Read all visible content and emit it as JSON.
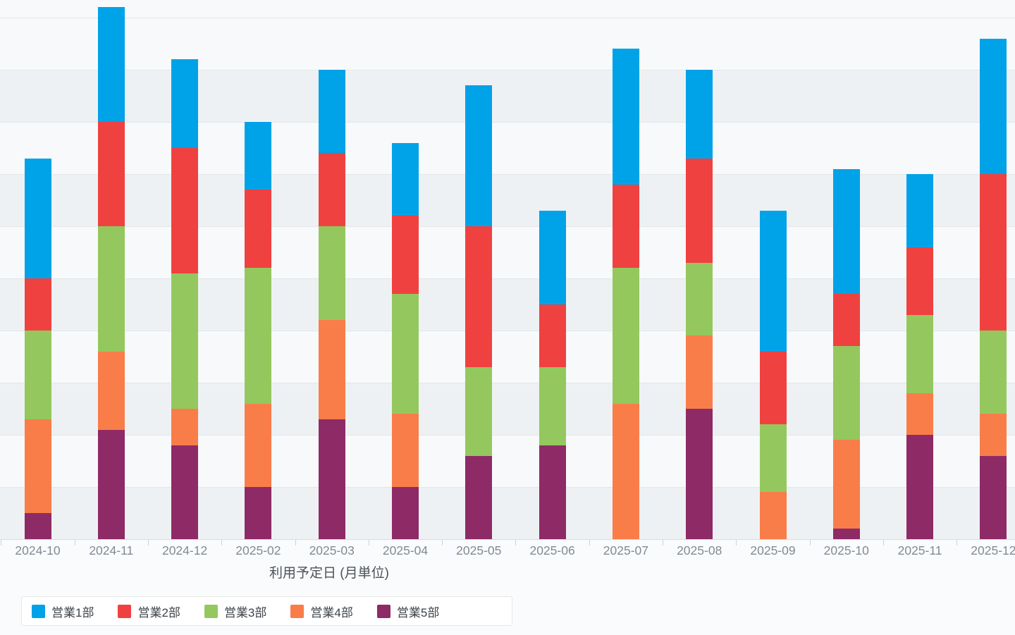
{
  "chart_data": {
    "type": "bar",
    "stacked": true,
    "title": "",
    "xlabel": "利用予定日 (月単位)",
    "ylabel": "",
    "categories": [
      "2024-10",
      "2024-11",
      "2024-12",
      "2025-02",
      "2025-03",
      "2025-04",
      "2025-05",
      "2025-06",
      "2025-07",
      "2025-08",
      "2025-09",
      "2025-10",
      "2025-11",
      "2025-12"
    ],
    "series": [
      {
        "name": "営業1部",
        "color": "#00a2e8",
        "values": [
          23,
          22,
          17,
          13,
          16,
          14,
          27,
          18,
          26,
          17,
          27,
          24,
          14,
          26
        ]
      },
      {
        "name": "営業2部",
        "color": "#f04141",
        "values": [
          10,
          20,
          24,
          15,
          14,
          15,
          27,
          12,
          16,
          20,
          14,
          10,
          13,
          30
        ]
      },
      {
        "name": "営業3部",
        "color": "#94c85e",
        "values": [
          17,
          24,
          26,
          26,
          18,
          23,
          17,
          15,
          26,
          14,
          13,
          18,
          15,
          16
        ]
      },
      {
        "name": "営業4部",
        "color": "#f97d49",
        "values": [
          18,
          15,
          7,
          16,
          19,
          14,
          0,
          0,
          26,
          14,
          9,
          17,
          8,
          8
        ]
      },
      {
        "name": "営業5部",
        "color": "#8e2a66",
        "values": [
          5,
          21,
          18,
          10,
          23,
          10,
          16,
          18,
          0,
          25,
          0,
          2,
          20,
          16
        ]
      }
    ],
    "y_axis": {
      "labels_visible": false,
      "gridline_step": 10,
      "max_gridline": 100
    },
    "grid": true,
    "legend_position": "bottom-left"
  },
  "legend": {
    "items": [
      {
        "label": "営業1部",
        "color": "#00a2e8"
      },
      {
        "label": "営業2部",
        "color": "#f04141"
      },
      {
        "label": "営業3部",
        "color": "#94c85e"
      },
      {
        "label": "営業4部",
        "color": "#f97d49"
      },
      {
        "label": "営業5部",
        "color": "#8e2a66"
      }
    ]
  }
}
